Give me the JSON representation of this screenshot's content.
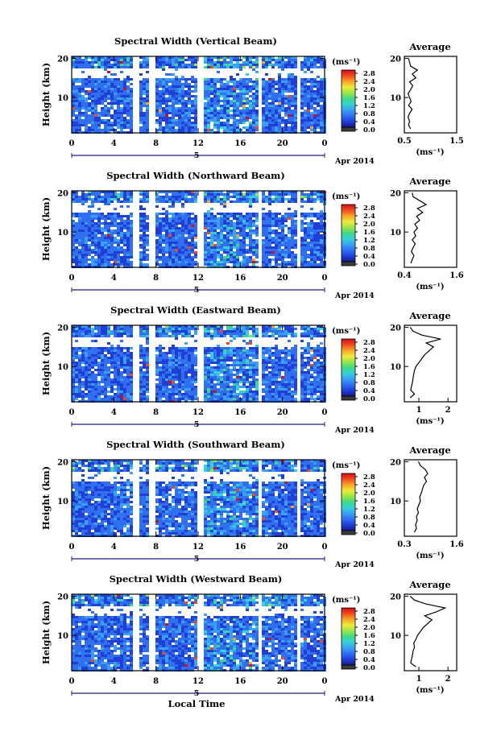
{
  "chart_data": [
    {
      "type": "heatmap",
      "title": "Spectral Width (Vertical Beam)",
      "ylabel": "Height (km)",
      "x_ticks": [
        "0",
        "4",
        "8",
        "12",
        "16",
        "20",
        "0"
      ],
      "y_ticks": [
        "10",
        "20"
      ],
      "date_marker": "5",
      "date_label": "Apr 2014",
      "colorbar_unit": "(ms⁻¹)",
      "colorbar_ticks": [
        "0.0",
        "0.4",
        "0.8",
        "1.2",
        "1.6",
        "2.0",
        "2.4",
        "2.8"
      ],
      "average_title": "Average",
      "average_xlabel": "(ms⁻¹)",
      "average_xticks": [
        "0.5",
        "1.5"
      ],
      "average_yticks": [
        "10",
        "20"
      ],
      "average_xlim": [
        0.5,
        1.5
      ],
      "average_profile": {
        "height_km": [
          2,
          3,
          4,
          5,
          6,
          7,
          8,
          9,
          10,
          11,
          12,
          13,
          14,
          15,
          16,
          17,
          18,
          19,
          20
        ],
        "width_ms": [
          0.62,
          0.58,
          0.6,
          0.57,
          0.6,
          0.65,
          0.58,
          0.63,
          0.6,
          0.57,
          0.62,
          0.66,
          0.6,
          0.72,
          0.65,
          0.75,
          0.62,
          0.6,
          0.58
        ]
      }
    },
    {
      "type": "heatmap",
      "title": "Spectral Width (Northward Beam)",
      "ylabel": "Height (km)",
      "x_ticks": [
        "0",
        "4",
        "8",
        "12",
        "16",
        "20",
        "0"
      ],
      "y_ticks": [
        "10",
        "20"
      ],
      "date_marker": "5",
      "date_label": "Apr 2014",
      "colorbar_unit": "(ms⁻¹)",
      "colorbar_ticks": [
        "0.0",
        "0.4",
        "0.8",
        "1.2",
        "1.6",
        "2.0",
        "2.4",
        "2.8"
      ],
      "average_title": "Average",
      "average_xlabel": "(ms⁻¹)",
      "average_xticks": [
        "0.4",
        "1.6"
      ],
      "average_yticks": [
        "10",
        "20"
      ],
      "average_xlim": [
        0.4,
        1.6
      ],
      "average_profile": {
        "height_km": [
          2,
          3,
          4,
          5,
          6,
          7,
          8,
          9,
          10,
          11,
          12,
          13,
          14,
          15,
          16,
          17,
          18,
          19,
          20
        ],
        "width_ms": [
          0.55,
          0.58,
          0.62,
          0.56,
          0.6,
          0.65,
          0.58,
          0.66,
          0.62,
          0.7,
          0.64,
          0.75,
          0.68,
          0.82,
          0.7,
          0.9,
          0.75,
          0.6,
          0.58
        ]
      }
    },
    {
      "type": "heatmap",
      "title": "Spectral Width (Eastward Beam)",
      "ylabel": "Height (km)",
      "x_ticks": [
        "0",
        "4",
        "8",
        "12",
        "16",
        "20",
        "0"
      ],
      "y_ticks": [
        "10",
        "20"
      ],
      "date_marker": "5",
      "date_label": "Apr 2014",
      "colorbar_unit": "(ms⁻¹)",
      "colorbar_ticks": [
        "0.0",
        "0.4",
        "0.8",
        "1.2",
        "1.6",
        "2.0",
        "2.4",
        "2.8"
      ],
      "average_title": "Average",
      "average_xlabel": "(ms⁻¹)",
      "average_xticks": [
        "1",
        "2"
      ],
      "average_yticks": [
        "10",
        "20"
      ],
      "average_xlim": [
        0.5,
        2.3
      ],
      "average_profile": {
        "height_km": [
          2,
          3,
          4,
          5,
          6,
          7,
          8,
          9,
          10,
          11,
          12,
          13,
          14,
          15,
          16,
          17,
          18,
          19,
          20
        ],
        "width_ms": [
          0.7,
          0.85,
          0.72,
          0.75,
          0.78,
          0.8,
          0.82,
          0.85,
          0.9,
          1.0,
          1.1,
          1.2,
          1.35,
          1.5,
          1.25,
          1.75,
          1.1,
          0.8,
          0.7
        ]
      }
    },
    {
      "type": "heatmap",
      "title": "Spectral Width (Southward Beam)",
      "ylabel": "Height (km)",
      "x_ticks": [
        "0",
        "4",
        "8",
        "12",
        "16",
        "20",
        "0"
      ],
      "y_ticks": [
        "10",
        "20"
      ],
      "date_marker": "5",
      "date_label": "Apr 2014",
      "colorbar_unit": "(ms⁻¹)",
      "colorbar_ticks": [
        "0.0",
        "0.4",
        "0.8",
        "1.2",
        "1.6",
        "2.0",
        "2.4",
        "2.8"
      ],
      "average_title": "Average",
      "average_xlabel": "(ms⁻¹)",
      "average_xticks": [
        "0.3",
        "1.6"
      ],
      "average_yticks": [
        "10",
        "20"
      ],
      "average_xlim": [
        0.3,
        1.6
      ],
      "average_profile": {
        "height_km": [
          2,
          3,
          4,
          5,
          6,
          7,
          8,
          9,
          10,
          11,
          12,
          13,
          14,
          15,
          16,
          17,
          18,
          19,
          20
        ],
        "width_ms": [
          0.55,
          0.6,
          0.58,
          0.62,
          0.6,
          0.65,
          0.62,
          0.66,
          0.7,
          0.68,
          0.72,
          0.75,
          0.78,
          0.85,
          0.8,
          0.88,
          0.82,
          0.7,
          0.65
        ]
      }
    },
    {
      "type": "heatmap",
      "title": "Spectral Width (Westward Beam)",
      "ylabel": "Height (km)",
      "x_ticks": [
        "0",
        "4",
        "8",
        "12",
        "16",
        "20",
        "0"
      ],
      "y_ticks": [
        "10",
        "20"
      ],
      "date_marker": "5",
      "date_label": "Apr 2014",
      "colorbar_unit": "(ms⁻¹)",
      "colorbar_ticks": [
        "0.0",
        "0.4",
        "0.8",
        "1.2",
        "1.6",
        "2.0",
        "2.4",
        "2.8"
      ],
      "average_title": "Average",
      "average_xlabel": "(ms⁻¹)",
      "average_xticks": [
        "1",
        "2"
      ],
      "average_yticks": [
        "10",
        "20"
      ],
      "average_xlim": [
        0.5,
        2.3
      ],
      "average_profile": {
        "height_km": [
          2,
          3,
          4,
          5,
          6,
          7,
          8,
          9,
          10,
          11,
          12,
          13,
          14,
          15,
          16,
          17,
          18,
          19,
          20
        ],
        "width_ms": [
          0.9,
          0.72,
          0.75,
          0.78,
          0.8,
          0.85,
          0.82,
          0.9,
          0.95,
          1.05,
          1.15,
          1.3,
          1.45,
          1.2,
          1.6,
          1.9,
          1.25,
          0.85,
          0.7
        ]
      },
      "xlabel": "Local Time"
    }
  ],
  "colors": {
    "colormap": [
      "#1a1a8a",
      "#1f3fd6",
      "#2f6ff0",
      "#3aa0f5",
      "#36d0d8",
      "#3fd985",
      "#9be54a",
      "#f0e83c",
      "#f6a52a",
      "#ef4a1f",
      "#d0101a"
    ],
    "colorbar_bottom": "#3a3a3a",
    "axis": "#000000",
    "date_axis": "#1e1e80"
  }
}
